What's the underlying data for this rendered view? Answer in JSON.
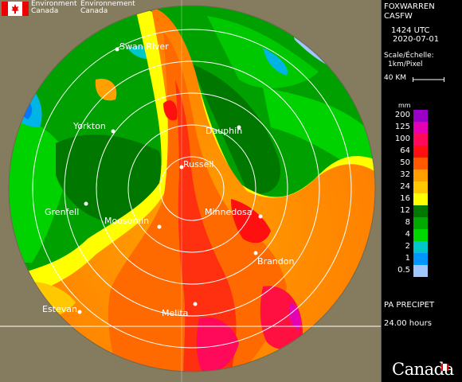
{
  "header": {
    "gov_en": "Environment Canada",
    "gov_fr": "Environnement Canada"
  },
  "station": {
    "name": "FOXWARREN",
    "id": "CASFW",
    "time": "1424 UTC",
    "date": "2020-07-01",
    "scale_label": "Scale/Échelle:",
    "scale_value": "1km/Pixel",
    "distance": "40 KM"
  },
  "legend": {
    "unit": "mm",
    "items": [
      {
        "label": "200",
        "color": "#9b00c8"
      },
      {
        "label": "125",
        "color": "#e600b4"
      },
      {
        "label": "100",
        "color": "#ff0a5a"
      },
      {
        "label": "64",
        "color": "#ff1010"
      },
      {
        "label": "50",
        "color": "#ff5a00"
      },
      {
        "label": "32",
        "color": "#ffa000"
      },
      {
        "label": "24",
        "color": "#ffc800"
      },
      {
        "label": "16",
        "color": "#ffff00"
      },
      {
        "label": "12",
        "color": "#007800"
      },
      {
        "label": "8",
        "color": "#00aa00"
      },
      {
        "label": "4",
        "color": "#00d700"
      },
      {
        "label": "2",
        "color": "#00c8c8"
      },
      {
        "label": "1",
        "color": "#0096ff"
      },
      {
        "label": "0.5",
        "color": "#a0c8ff"
      }
    ]
  },
  "product": {
    "name": "PA PRECIPET",
    "duration": "24.00 hours"
  },
  "wordmark": "Canada",
  "map": {
    "cities": [
      {
        "name": "Swan River"
      },
      {
        "name": "Yorkton"
      },
      {
        "name": "Dauphin"
      },
      {
        "name": "Russell"
      },
      {
        "name": "Grenfell"
      },
      {
        "name": "Minnedosa"
      },
      {
        "name": "Moosomin"
      },
      {
        "name": "Brandon"
      },
      {
        "name": "Estevan"
      },
      {
        "name": "Melita"
      }
    ]
  },
  "colors": {
    "background_land": "#857c60",
    "panel_bg": "#000000",
    "range_ring": "#ffffff"
  }
}
